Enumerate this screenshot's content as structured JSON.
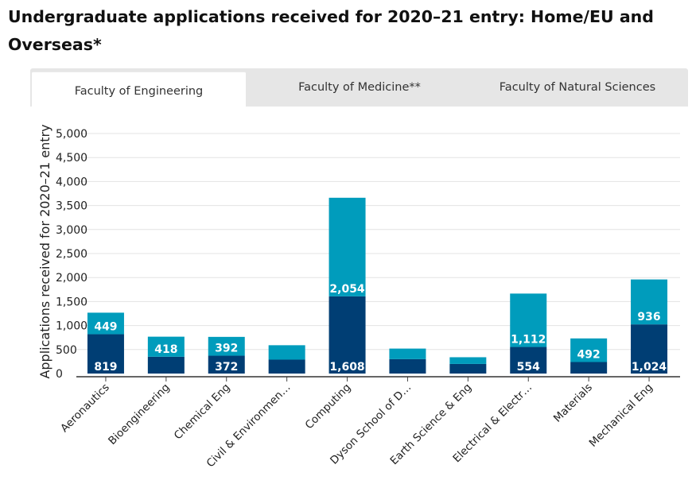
{
  "title": "Undergraduate applications received for 2020–21 entry: Home/EU and Overseas*",
  "tabs": [
    {
      "label": "Faculty of Engineering",
      "active": true
    },
    {
      "label": "Faculty of Medicine**",
      "active": false
    },
    {
      "label": "Faculty of Natural Sciences",
      "active": false
    }
  ],
  "colors": {
    "home_eu": "#003e74",
    "overseas": "#009cbc"
  },
  "chart_data": {
    "type": "bar",
    "stacked": true,
    "ylabel": "Applications received for 2020–21 entry",
    "ylim": [
      0,
      5000
    ],
    "yticks": [
      0,
      500,
      1000,
      1500,
      2000,
      2500,
      3000,
      3500,
      4000,
      4500,
      5000
    ],
    "ytick_labels": [
      "0",
      "500",
      "1,000",
      "1,500",
      "2,000",
      "2,500",
      "3,000",
      "3,500",
      "4,000",
      "4,500",
      "5,000"
    ],
    "grid": true,
    "categories": [
      "Aeronautics",
      "Bioengineering",
      "Chemical Eng",
      "Civil & Environmen…",
      "Computing",
      "Dyson School of D…",
      "Earth Science & Eng",
      "Electrical & Electr…",
      "Materials",
      "Mechanical Eng"
    ],
    "series": [
      {
        "values": [
          819,
          350,
          372,
          290,
          1608,
          300,
          200,
          554,
          240,
          1024
        ],
        "labels": [
          "819",
          "",
          "372",
          "",
          "1,608",
          "",
          "",
          "554",
          "",
          "1,024"
        ]
      },
      {
        "values": [
          449,
          418,
          392,
          300,
          2054,
          220,
          140,
          1112,
          492,
          936
        ],
        "labels": [
          "449",
          "418",
          "392",
          "",
          "2,054",
          "",
          "",
          "1,112",
          "492",
          "936"
        ]
      }
    ]
  }
}
